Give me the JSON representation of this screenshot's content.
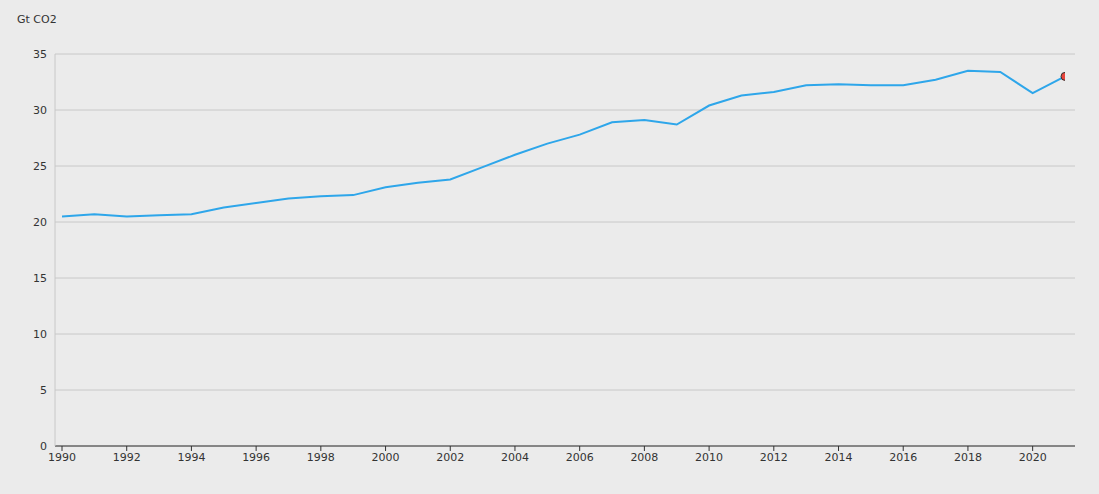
{
  "chart_data": {
    "type": "line",
    "y_label": "Gt CO2",
    "x": [
      1990,
      1991,
      1992,
      1993,
      1994,
      1995,
      1996,
      1997,
      1998,
      1999,
      2000,
      2001,
      2002,
      2003,
      2004,
      2005,
      2006,
      2007,
      2008,
      2009,
      2010,
      2011,
      2012,
      2013,
      2014,
      2015,
      2016,
      2017,
      2018,
      2019,
      2020,
      2021
    ],
    "values": [
      20.5,
      20.7,
      20.5,
      20.6,
      20.7,
      21.3,
      21.7,
      22.1,
      22.3,
      22.4,
      23.1,
      23.5,
      23.8,
      24.9,
      26.0,
      27.0,
      27.8,
      28.9,
      29.1,
      28.7,
      30.4,
      31.3,
      31.6,
      32.2,
      32.3,
      32.2,
      32.2,
      32.7,
      33.5,
      33.4,
      31.5,
      33.0
    ],
    "color": "#2ea6ea",
    "marker": "end",
    "xlim": [
      1990,
      2021
    ],
    "xticks": [
      1990,
      1992,
      1994,
      1996,
      1998,
      2000,
      2002,
      2004,
      2006,
      2008,
      2010,
      2012,
      2014,
      2016,
      2018,
      2020
    ],
    "ylim": [
      0,
      35
    ],
    "yticks": [
      0,
      5,
      10,
      15,
      20,
      25,
      30,
      35
    ],
    "grid": true
  }
}
